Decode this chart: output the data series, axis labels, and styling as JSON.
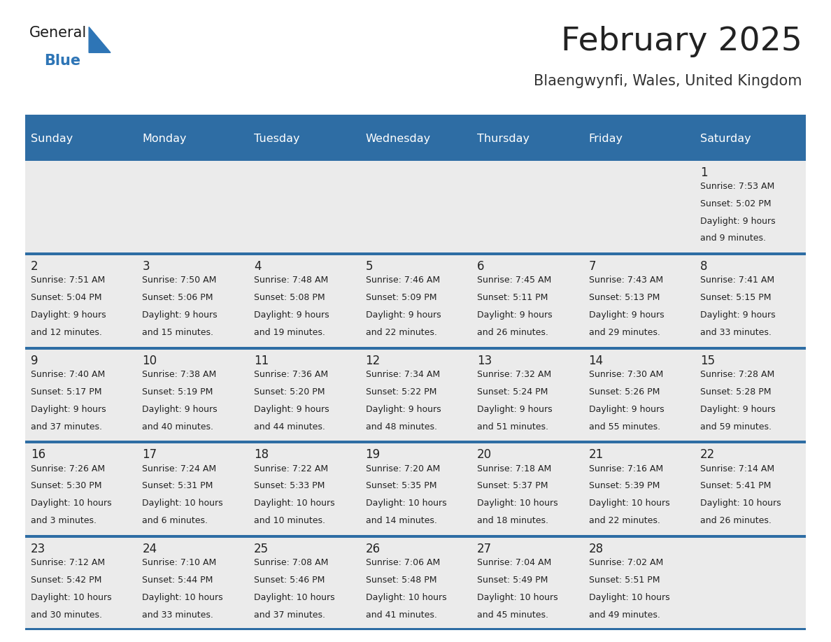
{
  "title": "February 2025",
  "subtitle": "Blaengwynfi, Wales, United Kingdom",
  "days_of_week": [
    "Sunday",
    "Monday",
    "Tuesday",
    "Wednesday",
    "Thursday",
    "Friday",
    "Saturday"
  ],
  "header_bg": "#2E6DA4",
  "header_text": "#FFFFFF",
  "cell_bg": "#EBEBEB",
  "cell_bg_white": "#FFFFFF",
  "row_border_color": "#2E6DA4",
  "text_color": "#222222",
  "day_number_color": "#222222",
  "title_color": "#222222",
  "subtitle_color": "#333333",
  "logo_general_color": "#1a1a1a",
  "logo_blue_color": "#2E75B6",
  "calendar": [
    [
      null,
      null,
      null,
      null,
      null,
      null,
      {
        "day": 1,
        "sunrise": "7:53 AM",
        "sunset": "5:02 PM",
        "daylight": "9 hours and 9 minutes."
      }
    ],
    [
      {
        "day": 2,
        "sunrise": "7:51 AM",
        "sunset": "5:04 PM",
        "daylight": "9 hours and 12 minutes."
      },
      {
        "day": 3,
        "sunrise": "7:50 AM",
        "sunset": "5:06 PM",
        "daylight": "9 hours and 15 minutes."
      },
      {
        "day": 4,
        "sunrise": "7:48 AM",
        "sunset": "5:08 PM",
        "daylight": "9 hours and 19 minutes."
      },
      {
        "day": 5,
        "sunrise": "7:46 AM",
        "sunset": "5:09 PM",
        "daylight": "9 hours and 22 minutes."
      },
      {
        "day": 6,
        "sunrise": "7:45 AM",
        "sunset": "5:11 PM",
        "daylight": "9 hours and 26 minutes."
      },
      {
        "day": 7,
        "sunrise": "7:43 AM",
        "sunset": "5:13 PM",
        "daylight": "9 hours and 29 minutes."
      },
      {
        "day": 8,
        "sunrise": "7:41 AM",
        "sunset": "5:15 PM",
        "daylight": "9 hours and 33 minutes."
      }
    ],
    [
      {
        "day": 9,
        "sunrise": "7:40 AM",
        "sunset": "5:17 PM",
        "daylight": "9 hours and 37 minutes."
      },
      {
        "day": 10,
        "sunrise": "7:38 AM",
        "sunset": "5:19 PM",
        "daylight": "9 hours and 40 minutes."
      },
      {
        "day": 11,
        "sunrise": "7:36 AM",
        "sunset": "5:20 PM",
        "daylight": "9 hours and 44 minutes."
      },
      {
        "day": 12,
        "sunrise": "7:34 AM",
        "sunset": "5:22 PM",
        "daylight": "9 hours and 48 minutes."
      },
      {
        "day": 13,
        "sunrise": "7:32 AM",
        "sunset": "5:24 PM",
        "daylight": "9 hours and 51 minutes."
      },
      {
        "day": 14,
        "sunrise": "7:30 AM",
        "sunset": "5:26 PM",
        "daylight": "9 hours and 55 minutes."
      },
      {
        "day": 15,
        "sunrise": "7:28 AM",
        "sunset": "5:28 PM",
        "daylight": "9 hours and 59 minutes."
      }
    ],
    [
      {
        "day": 16,
        "sunrise": "7:26 AM",
        "sunset": "5:30 PM",
        "daylight": "10 hours and 3 minutes."
      },
      {
        "day": 17,
        "sunrise": "7:24 AM",
        "sunset": "5:31 PM",
        "daylight": "10 hours and 6 minutes."
      },
      {
        "day": 18,
        "sunrise": "7:22 AM",
        "sunset": "5:33 PM",
        "daylight": "10 hours and 10 minutes."
      },
      {
        "day": 19,
        "sunrise": "7:20 AM",
        "sunset": "5:35 PM",
        "daylight": "10 hours and 14 minutes."
      },
      {
        "day": 20,
        "sunrise": "7:18 AM",
        "sunset": "5:37 PM",
        "daylight": "10 hours and 18 minutes."
      },
      {
        "day": 21,
        "sunrise": "7:16 AM",
        "sunset": "5:39 PM",
        "daylight": "10 hours and 22 minutes."
      },
      {
        "day": 22,
        "sunrise": "7:14 AM",
        "sunset": "5:41 PM",
        "daylight": "10 hours and 26 minutes."
      }
    ],
    [
      {
        "day": 23,
        "sunrise": "7:12 AM",
        "sunset": "5:42 PM",
        "daylight": "10 hours and 30 minutes."
      },
      {
        "day": 24,
        "sunrise": "7:10 AM",
        "sunset": "5:44 PM",
        "daylight": "10 hours and 33 minutes."
      },
      {
        "day": 25,
        "sunrise": "7:08 AM",
        "sunset": "5:46 PM",
        "daylight": "10 hours and 37 minutes."
      },
      {
        "day": 26,
        "sunrise": "7:06 AM",
        "sunset": "5:48 PM",
        "daylight": "10 hours and 41 minutes."
      },
      {
        "day": 27,
        "sunrise": "7:04 AM",
        "sunset": "5:49 PM",
        "daylight": "10 hours and 45 minutes."
      },
      {
        "day": 28,
        "sunrise": "7:02 AM",
        "sunset": "5:51 PM",
        "daylight": "10 hours and 49 minutes."
      },
      null
    ]
  ],
  "figsize": [
    11.88,
    9.18
  ],
  "dpi": 100
}
